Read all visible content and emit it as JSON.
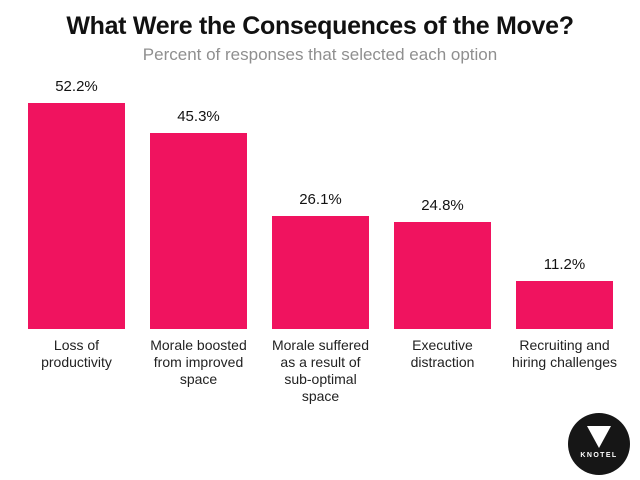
{
  "chart": {
    "title": "What Were the Consequences of the Move?",
    "subtitle": "Percent of responses that selected each option"
  },
  "chart_data": {
    "type": "bar",
    "title": "What Were the Consequences of the Move?",
    "subtitle": "Percent of responses that selected each option",
    "categories": [
      "Loss of productivity",
      "Morale boosted from improved space",
      "Morale suffered as a result of sub-optimal space",
      "Executive distraction",
      "Recruiting and hiring challenges"
    ],
    "category_lines": [
      [
        "Loss of",
        "productivity"
      ],
      [
        "Morale boosted",
        "from improved",
        "space"
      ],
      [
        "Morale suffered",
        "as a result of",
        "sub-optimal",
        "space"
      ],
      [
        "Executive",
        "distraction"
      ],
      [
        "Recruiting and",
        "hiring challenges"
      ]
    ],
    "values": [
      52.2,
      45.3,
      26.1,
      24.8,
      11.2
    ],
    "value_labels": [
      "52.2%",
      "45.3%",
      "26.1%",
      "24.8%",
      "11.2%"
    ],
    "bar_color": "#F0135F",
    "ylim": [
      0,
      56
    ],
    "grid": false,
    "legend": false,
    "xlabel": "",
    "ylabel": ""
  },
  "logo": {
    "text": "KNOTEL"
  },
  "colors": {
    "bar": "#F0135F",
    "title": "#111111",
    "subtitle": "#8f8f8f",
    "logo_bg": "#161616",
    "logo_fg": "#ffffff"
  }
}
